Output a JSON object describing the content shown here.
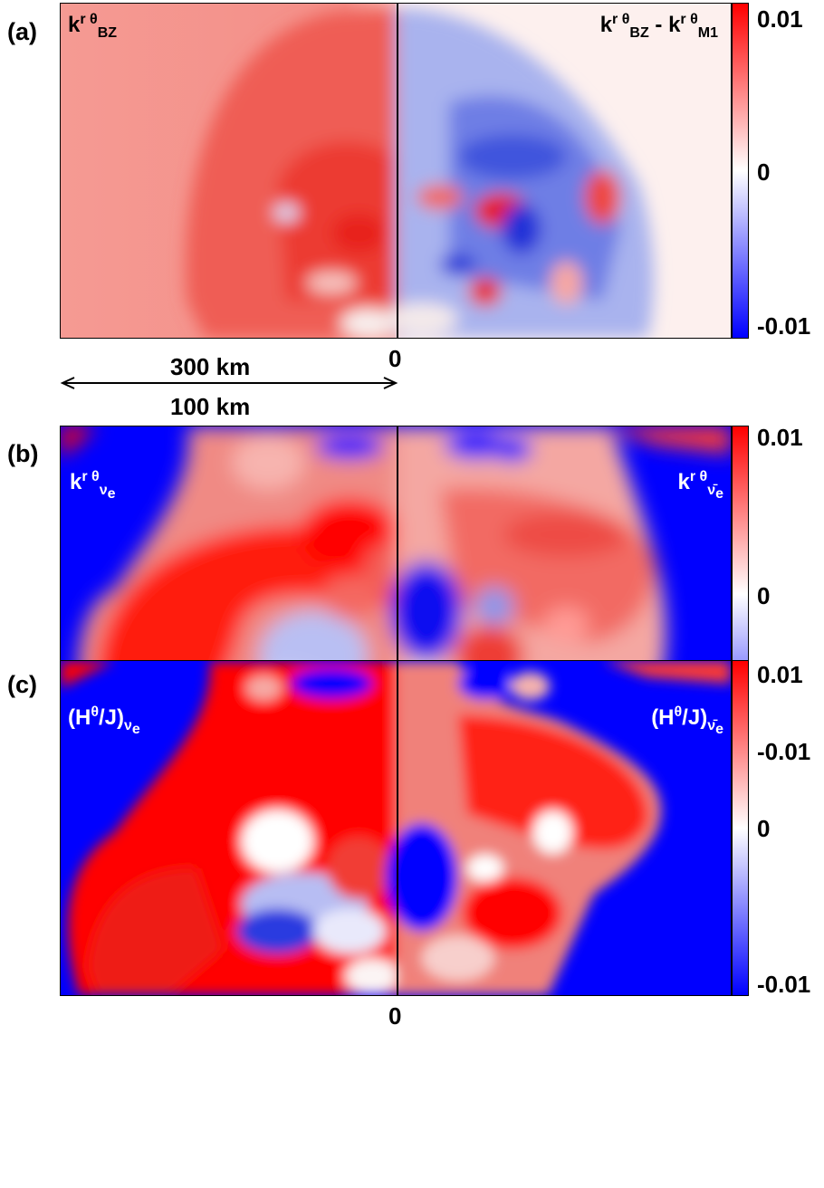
{
  "panels": [
    {
      "label": "(a)",
      "left_title": {
        "base": "k",
        "sup1": "r",
        "sup2": "θ",
        "sub": "BZ"
      },
      "right_title": {
        "a_base": "k",
        "a_sup1": "r",
        "a_sup2": "θ",
        "a_sub": "BZ",
        "op": "-",
        "b_base": "k",
        "b_sup1": "r",
        "b_sup2": "θ",
        "b_sub": "M1"
      },
      "cbar": {
        "max": "0.01",
        "mid": "0",
        "min": "-0.01"
      },
      "axis_center": "0"
    },
    {
      "label": "(b)",
      "left_title": {
        "base": "k",
        "sup1": "r",
        "sup2": "θ",
        "sub": "ν",
        "subsub": "e"
      },
      "right_title": {
        "base": "k",
        "sup1": "r",
        "sup2": "θ",
        "sub": "ν̄",
        "subsub": "e"
      },
      "cbar": {
        "max": "0.01",
        "mid": "0",
        "min": "-0.01"
      },
      "axis_center": "0"
    },
    {
      "label": "(c)",
      "left_title": {
        "pre": "(H",
        "sup": "θ",
        "post": "/J)",
        "sub": "ν",
        "subsub": "e"
      },
      "right_title": {
        "pre": "(H",
        "sup": "θ",
        "post": "/J)",
        "sub": "ν̄",
        "subsub": "e"
      },
      "cbar": {
        "max": "0.01",
        "mid": "0",
        "min": "-0.01"
      },
      "axis_center": "0"
    }
  ],
  "scale_bar": {
    "top_label": "300 km",
    "bottom_label": "100 km"
  },
  "colors": {
    "positive": "#ff0000",
    "zero": "#ffffff",
    "negative": "#0000ff"
  }
}
